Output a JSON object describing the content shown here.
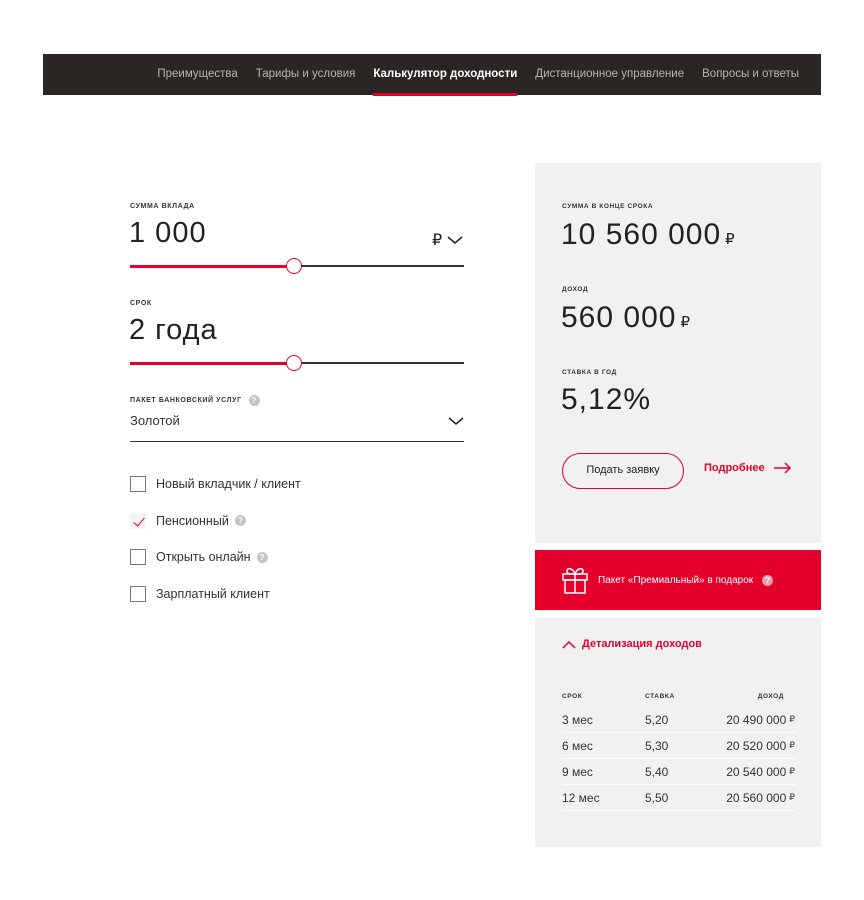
{
  "nav": {
    "tabs": [
      {
        "label": "Преимущества",
        "active": false
      },
      {
        "label": "Тарифы и условия",
        "active": false
      },
      {
        "label": "Калькулятор доходности",
        "active": true
      },
      {
        "label": "Дистанционное управление",
        "active": false
      },
      {
        "label": "Вопросы и ответы",
        "active": false
      }
    ]
  },
  "calc": {
    "amount_label": "Сумма вклада",
    "amount_value": "1 000",
    "currency": "₽",
    "amount_slider": 0.49,
    "term_label": "Срок",
    "term_value": "2 года",
    "term_slider": 0.49,
    "package_label": "Пакет банковский услуг",
    "package_value": "Золотой",
    "checkboxes": [
      {
        "label": "Новый вкладчик / клиент",
        "checked": false,
        "help": false
      },
      {
        "label": "Пенсионный",
        "checked": true,
        "help": true
      },
      {
        "label": "Открыть онлайн",
        "checked": false,
        "help": true
      },
      {
        "label": "Зарплатный клиент",
        "checked": false,
        "help": false
      }
    ]
  },
  "result": {
    "total_label": "Сумма в конце срока",
    "total_value": "10 560 000",
    "income_label": "Доход",
    "income_value": "560 000",
    "rate_label": "Ставка в год",
    "rate_value": "5,12%",
    "currency": "₽",
    "apply_label": "Подать заявку",
    "more_label": "Подробнее"
  },
  "banner": {
    "text": "Пакет «Премиальный» в подарок"
  },
  "details": {
    "toggle_label": "Детализация доходов",
    "headers": [
      "Срок",
      "Ставка",
      "Доход"
    ],
    "rows": [
      [
        "3 мес",
        "5,20",
        "20 490 000"
      ],
      [
        "6 мес",
        "5,30",
        "20 520 000"
      ],
      [
        "9 мес",
        "5,40",
        "20 540 000"
      ],
      [
        "12 мес",
        "5,50",
        "20 560 000"
      ]
    ]
  },
  "colors": {
    "accent": "#e4002b",
    "nav_bg": "#2a2624",
    "panel_bg": "#f1f1f1"
  }
}
